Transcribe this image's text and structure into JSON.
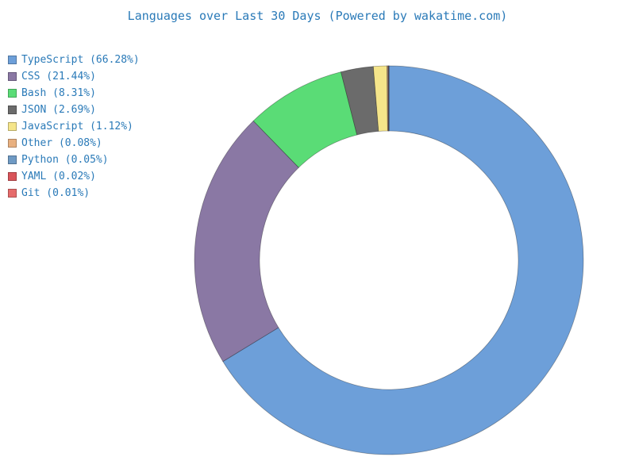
{
  "chart_data": {
    "type": "pie",
    "title": "Languages over Last 30 Days (Powered by wakatime.com)",
    "donut": true,
    "legend_placement": "top-left",
    "slices": [
      {
        "label": "TypeScript",
        "value": 66.28,
        "legend": "TypeScript (66.28%)",
        "color": "#6d9fd9"
      },
      {
        "label": "CSS",
        "value": 21.44,
        "legend": "CSS (21.44%)",
        "color": "#8a78a4"
      },
      {
        "label": "Bash",
        "value": 8.31,
        "legend": "Bash (8.31%)",
        "color": "#5adc76"
      },
      {
        "label": "JSON",
        "value": 2.69,
        "legend": "JSON (2.69%)",
        "color": "#6b6b6b"
      },
      {
        "label": "JavaScript",
        "value": 1.12,
        "legend": "JavaScript (1.12%)",
        "color": "#f5e58a"
      },
      {
        "label": "Other",
        "value": 0.08,
        "legend": "Other (0.08%)",
        "color": "#e8b080"
      },
      {
        "label": "Python",
        "value": 0.05,
        "legend": "Python (0.05%)",
        "color": "#6f9ac4"
      },
      {
        "label": "YAML",
        "value": 0.02,
        "legend": "YAML (0.02%)",
        "color": "#d9545a"
      },
      {
        "label": "Git",
        "value": 0.01,
        "legend": "Git (0.01%)",
        "color": "#e66b6b"
      }
    ]
  }
}
